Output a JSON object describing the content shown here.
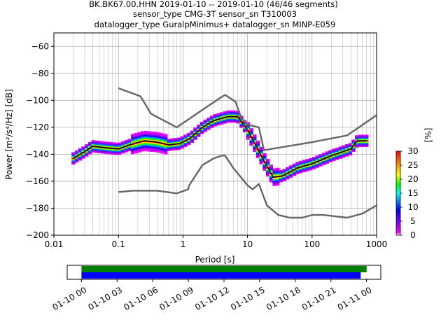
{
  "chart_data": [
    {
      "type": "heatmap",
      "title_lines": [
        "BK.BK67.00.HHN   2019-01-10 -- 2019-01-10  (46/46 segments)",
        "sensor_type CMG-3T sensor_sn T310003",
        "datalogger_type GuralpMinimus+ datalogger_sn MINP-E059"
      ],
      "xlabel": "Period [s]",
      "ylabel": "Power [m²/s⁴/Hz] [dB]",
      "x_scale": "log",
      "xlim": [
        0.01,
        1000
      ],
      "ylim": [
        -200,
        -50
      ],
      "x_ticks": [
        {
          "v": 0.01,
          "label": "0.01"
        },
        {
          "v": 0.1,
          "label": "0.1"
        },
        {
          "v": 1,
          "label": "1"
        },
        {
          "v": 10,
          "label": "10"
        },
        {
          "v": 100,
          "label": "100"
        },
        {
          "v": 1000,
          "label": "1000"
        }
      ],
      "y_ticks": [
        {
          "v": -60,
          "label": "−60"
        },
        {
          "v": -80,
          "label": "−80"
        },
        {
          "v": -100,
          "label": "−100"
        },
        {
          "v": -120,
          "label": "−120"
        },
        {
          "v": -140,
          "label": "−140"
        },
        {
          "v": -160,
          "label": "−160"
        },
        {
          "v": -180,
          "label": "−180"
        },
        {
          "v": -200,
          "label": "−200"
        }
      ],
      "grid": true,
      "series": [
        {
          "name": "",
          "role": "NHNM",
          "color": "#666666",
          "points": [
            [
              0.1,
              -91
            ],
            [
              0.22,
              -97
            ],
            [
              0.32,
              -110
            ],
            [
              0.8,
              -120
            ],
            [
              3.8,
              -98
            ],
            [
              4.5,
              -96
            ],
            [
              6.5,
              -101
            ],
            [
              8,
              -113
            ],
            [
              10,
              -118
            ],
            [
              15,
              -120
            ],
            [
              18,
              -137
            ],
            [
              100,
              -131
            ],
            [
              350,
              -126
            ],
            [
              1000,
              -111
            ]
          ]
        },
        {
          "name": "",
          "role": "NLNM",
          "color": "#666666",
          "points": [
            [
              0.1,
              -168
            ],
            [
              0.17,
              -167
            ],
            [
              0.4,
              -167
            ],
            [
              0.8,
              -169
            ],
            [
              1.2,
              -166
            ],
            [
              1.25,
              -163
            ],
            [
              2,
              -148
            ],
            [
              3,
              -143
            ],
            [
              4,
              -141
            ],
            [
              4.5,
              -141
            ],
            [
              6,
              -150
            ],
            [
              10,
              -163
            ],
            [
              12,
              -166
            ],
            [
              15,
              -162
            ],
            [
              20,
              -178
            ],
            [
              30,
              -185
            ],
            [
              45,
              -187
            ],
            [
              70,
              -187
            ],
            [
              100,
              -185
            ],
            [
              150,
              -185
            ],
            [
              350,
              -187
            ],
            [
              600,
              -184
            ],
            [
              1000,
              -178
            ]
          ]
        },
        {
          "name": "",
          "role": "mode",
          "color": "#000000",
          "points": [
            [
              0.02,
              -143
            ],
            [
              0.03,
              -138
            ],
            [
              0.04,
              -134
            ],
            [
              0.06,
              -135
            ],
            [
              0.1,
              -136
            ],
            [
              0.15,
              -133
            ],
            [
              0.25,
              -130
            ],
            [
              0.4,
              -131
            ],
            [
              0.6,
              -133
            ],
            [
              0.9,
              -132
            ],
            [
              1.3,
              -128
            ],
            [
              2,
              -120
            ],
            [
              3,
              -115
            ],
            [
              5,
              -112
            ],
            [
              7,
              -112
            ],
            [
              10,
              -122
            ],
            [
              14,
              -135
            ],
            [
              18,
              -145
            ],
            [
              25,
              -157
            ],
            [
              35,
              -156
            ],
            [
              60,
              -150
            ],
            [
              100,
              -147
            ],
            [
              200,
              -141
            ],
            [
              400,
              -136
            ],
            [
              500,
              -130
            ],
            [
              700,
              -130
            ]
          ]
        }
      ],
      "colorbar": {
        "label": "[%]",
        "range": [
          0,
          30
        ],
        "ticks": [
          {
            "v": 0,
            "label": "0"
          },
          {
            "v": 5,
            "label": "5"
          },
          {
            "v": 10,
            "label": "10"
          },
          {
            "v": 15,
            "label": "15"
          },
          {
            "v": 20,
            "label": "20"
          },
          {
            "v": 25,
            "label": "25"
          },
          {
            "v": 30,
            "label": "30"
          }
        ]
      }
    },
    {
      "type": "bar",
      "title": "",
      "x_ticks": [
        {
          "v": 0,
          "label": "01-10 00"
        },
        {
          "v": 3,
          "label": "01-10 03"
        },
        {
          "v": 6,
          "label": "01-10 06"
        },
        {
          "v": 9,
          "label": "01-10 09"
        },
        {
          "v": 12,
          "label": "01-10 12"
        },
        {
          "v": 15,
          "label": "01-10 15"
        },
        {
          "v": 18,
          "label": "01-10 18"
        },
        {
          "v": 21,
          "label": "01-10 21"
        },
        {
          "v": 24,
          "label": "01-11 00"
        }
      ],
      "xlim": [
        -1.2,
        25.2
      ],
      "series": [
        {
          "name": "",
          "color": "#008000",
          "start": 0,
          "end": 24.0
        },
        {
          "name": "",
          "color": "#0000ff",
          "start": 0,
          "end": 23.5
        }
      ]
    }
  ]
}
